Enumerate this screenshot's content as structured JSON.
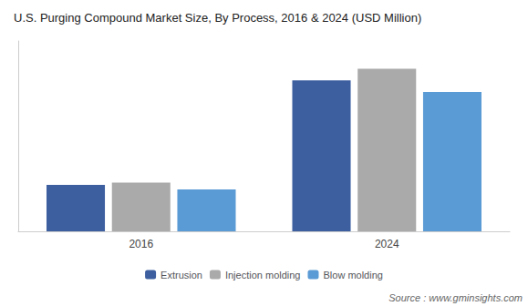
{
  "chart_data": {
    "type": "bar",
    "title": "U.S. Purging Compound Market Size, By Process, 2016 & 2024 (USD Million)",
    "categories": [
      "2016",
      "2024"
    ],
    "series": [
      {
        "name": "Extrusion",
        "color": "#3d5fa0",
        "values": [
          20,
          65
        ]
      },
      {
        "name": "Injection molding",
        "color": "#aaaaaa",
        "values": [
          21,
          70
        ]
      },
      {
        "name": "Blow molding",
        "color": "#5b9bd5",
        "values": [
          18,
          60
        ]
      }
    ],
    "ylim": [
      0,
      82
    ],
    "grid": false,
    "legend": "bottom",
    "tick_labels": "x",
    "annotations": [
      "Source : www.gminsights.com"
    ]
  }
}
